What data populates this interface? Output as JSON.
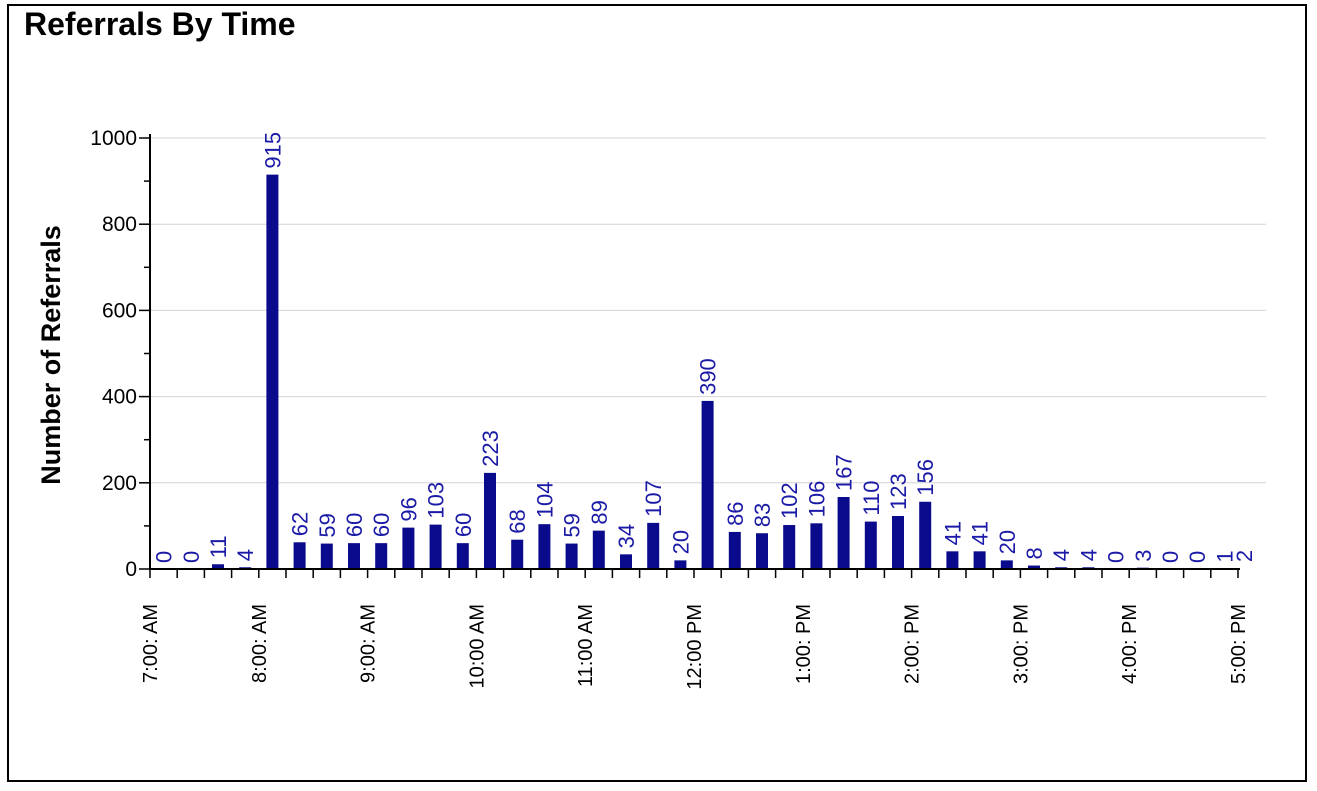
{
  "chart_data": {
    "type": "bar",
    "title": "Referrals By Time",
    "xlabel": "",
    "ylabel": "Number of Referrals",
    "ylim": [
      0,
      1000
    ],
    "yticks": [
      0,
      200,
      400,
      600,
      800,
      1000
    ],
    "grid": true,
    "legend": "none",
    "bar_color": "#0a0a8c",
    "label_color": "#1a1aa6",
    "values": [
      0,
      0,
      11,
      4,
      915,
      62,
      59,
      60,
      60,
      96,
      103,
      60,
      223,
      68,
      104,
      59,
      89,
      34,
      107,
      20,
      390,
      86,
      83,
      102,
      106,
      167,
      110,
      123,
      156,
      41,
      41,
      20,
      8,
      4,
      4,
      0,
      3,
      0,
      0,
      1,
      2
    ],
    "tick_labels": [
      {
        "index": 0,
        "label": "7:00: AM"
      },
      {
        "index": 4,
        "label": "8:00: AM"
      },
      {
        "index": 8,
        "label": "9:00: AM"
      },
      {
        "index": 12,
        "label": "10:00 AM"
      },
      {
        "index": 16,
        "label": "11:00 AM"
      },
      {
        "index": 20,
        "label": "12:00 PM"
      },
      {
        "index": 24,
        "label": "1:00: PM"
      },
      {
        "index": 28,
        "label": "2:00: PM"
      },
      {
        "index": 32,
        "label": "3:00: PM"
      },
      {
        "index": 36,
        "label": "4:00: PM"
      },
      {
        "index": 40,
        "label": "5:00: PM"
      }
    ]
  }
}
